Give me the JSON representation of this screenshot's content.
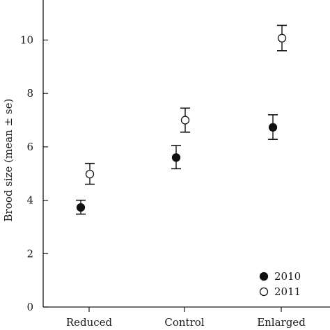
{
  "chart_data": {
    "type": "scatter",
    "title": "",
    "xlabel": "",
    "ylabel": "Brood size (mean ± se)",
    "categories": [
      "Reduced",
      "Control",
      "Enlarged"
    ],
    "ylim": [
      0,
      11.5
    ],
    "yticks": [
      0,
      2,
      4,
      6,
      8,
      10
    ],
    "grid": false,
    "legend_position": "bottom-right",
    "series": [
      {
        "name": "2010",
        "marker": "filled-circle",
        "color": "#111111",
        "values": [
          3.73,
          5.6,
          6.73
        ],
        "err_low": [
          3.48,
          5.18,
          6.28
        ],
        "err_high": [
          4.0,
          6.05,
          7.2
        ]
      },
      {
        "name": "2011",
        "marker": "open-circle",
        "color": "#111111",
        "values": [
          4.98,
          7.0,
          10.07
        ],
        "err_low": [
          4.6,
          6.55,
          9.6
        ],
        "err_high": [
          5.38,
          7.45,
          10.55
        ]
      }
    ]
  }
}
